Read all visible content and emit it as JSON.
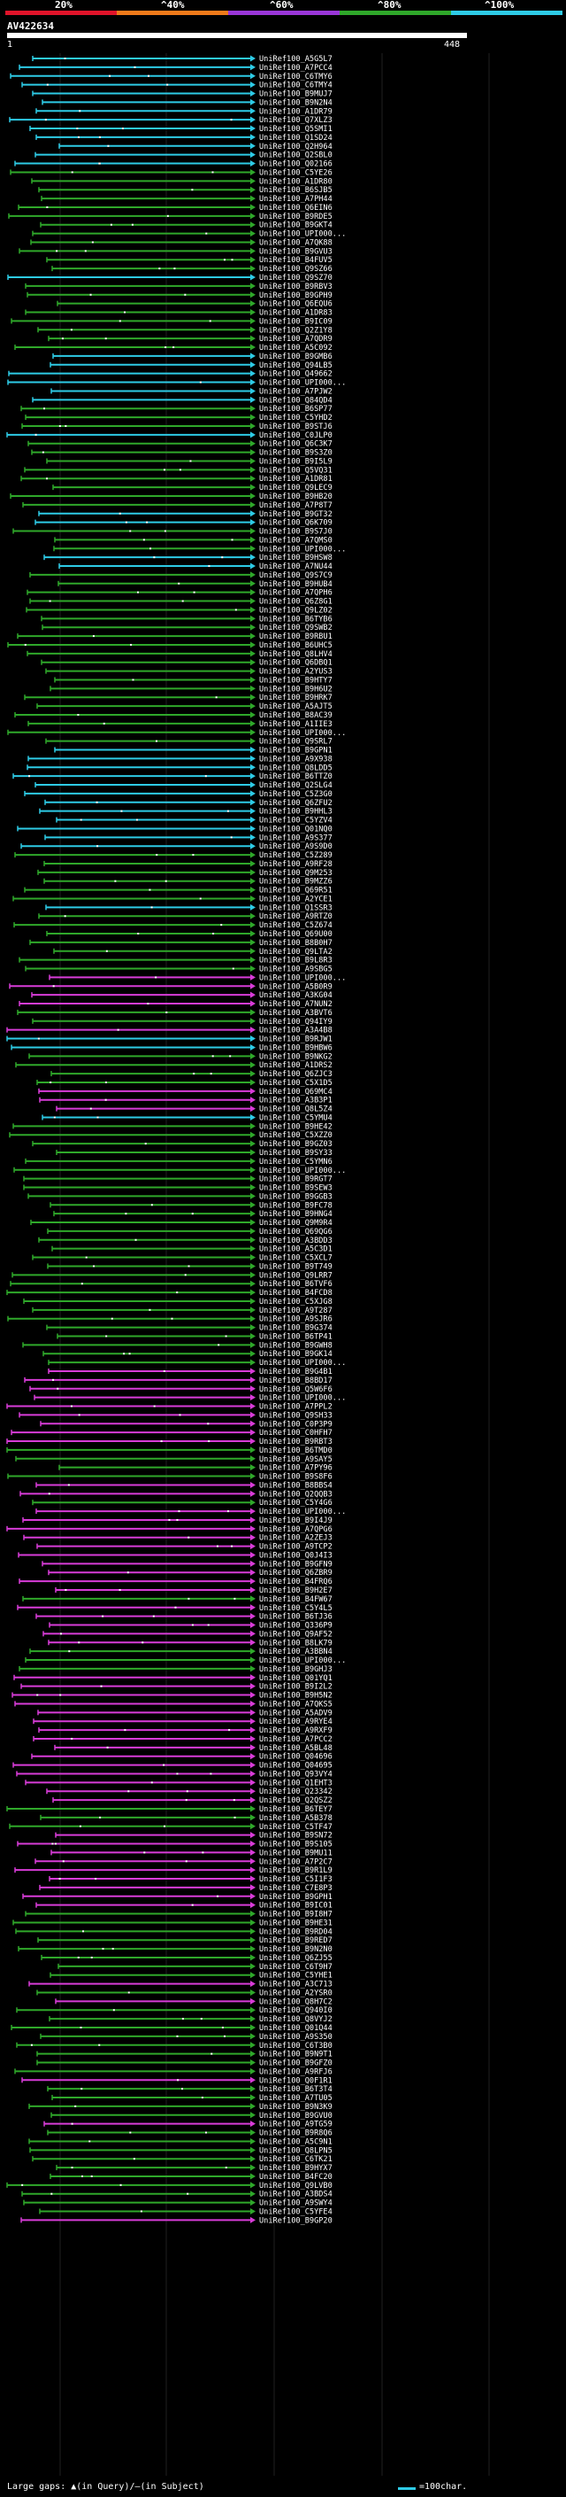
{
  "scale": {
    "labels": [
      "20%",
      "^40%",
      "^60%",
      "^80%",
      "^100%"
    ],
    "colors": [
      "#e0142a",
      "#f07a1a",
      "#9a36d8",
      "#2fa82a",
      "#2ecbe6"
    ]
  },
  "query": {
    "id": "AV422634",
    "start": "1",
    "end": "448"
  },
  "footer": {
    "gaps_text": "Large gaps: ▲(in Query)/—(in Subject)",
    "legend_text": "=100char."
  },
  "hits": [
    {
      "label": "UniRef100_A5G5L7",
      "color": "#2ecbe6"
    },
    {
      "label": "UniRef100_A7PCC4",
      "color": "#2ecbe6"
    },
    {
      "label": "UniRef100_C6TMY6",
      "color": "#2ecbe6"
    },
    {
      "label": "UniRef100_C6TMY4",
      "color": "#2ecbe6"
    },
    {
      "label": "UniRef100_B9MUJ7",
      "color": "#2ecbe6"
    },
    {
      "label": "UniRef100_B9N2N4",
      "color": "#2ecbe6"
    },
    {
      "label": "UniRef100_A1DR79",
      "color": "#2ecbe6"
    },
    {
      "label": "UniRef100_Q7XLZ3",
      "color": "#2ecbe6"
    },
    {
      "label": "UniRef100_Q5SMI1",
      "color": "#2ecbe6"
    },
    {
      "label": "UniRef100_Q1SD24",
      "color": "#2ecbe6"
    },
    {
      "label": "UniRef100_Q2H964",
      "color": "#2ecbe6"
    },
    {
      "label": "UniRef100_Q2SBL0",
      "color": "#2ecbe6"
    },
    {
      "label": "UniRef100_Q02166",
      "color": "#2ecbe6"
    },
    {
      "label": "UniRef100_C5YE26",
      "color": "#2fa82a"
    },
    {
      "label": "UniRef100_A1DR80",
      "color": "#2fa82a"
    },
    {
      "label": "UniRef100_B6SJB5",
      "color": "#2fa82a"
    },
    {
      "label": "UniRef100_A7PH44",
      "color": "#2fa82a"
    },
    {
      "label": "UniRef100_Q6EIN6",
      "color": "#2fa82a"
    },
    {
      "label": "UniRef100_B9RDE5",
      "color": "#2fa82a"
    },
    {
      "label": "UniRef100_B9GKT4",
      "color": "#2fa82a"
    },
    {
      "label": "UniRef100_UPI000...",
      "color": "#2fa82a"
    },
    {
      "label": "UniRef100_A7QK88",
      "color": "#2fa82a"
    },
    {
      "label": "UniRef100_B9GVU3",
      "color": "#2fa82a"
    },
    {
      "label": "UniRef100_B4FUV5",
      "color": "#2fa82a"
    },
    {
      "label": "UniRef100_Q9SZ66",
      "color": "#2fa82a"
    },
    {
      "label": "UniRef100_Q9SZ70",
      "color": "#2ecbe6"
    },
    {
      "label": "UniRef100_B9RBV3",
      "color": "#2fa82a"
    },
    {
      "label": "UniRef100_B9GPH9",
      "color": "#2fa82a"
    },
    {
      "label": "UniRef100_Q6EQU6",
      "color": "#2fa82a"
    },
    {
      "label": "UniRef100_A1DR83",
      "color": "#2fa82a"
    },
    {
      "label": "UniRef100_B9IC09",
      "color": "#2fa82a"
    },
    {
      "label": "UniRef100_Q2Z1Y8",
      "color": "#2fa82a"
    },
    {
      "label": "UniRef100_A7QDR9",
      "color": "#2fa82a"
    },
    {
      "label": "UniRef100_A5C092",
      "color": "#2fa82a"
    },
    {
      "label": "UniRef100_B9GMB6",
      "color": "#2ecbe6"
    },
    {
      "label": "UniRef100_Q94LB5",
      "color": "#2ecbe6"
    },
    {
      "label": "UniRef100_Q49662",
      "color": "#2ecbe6"
    },
    {
      "label": "UniRef100_UPI000...",
      "color": "#2ecbe6"
    },
    {
      "label": "UniRef100_A7PJW2",
      "color": "#2ecbe6"
    },
    {
      "label": "UniRef100_Q84QD4",
      "color": "#2ecbe6"
    },
    {
      "label": "UniRef100_B6SP77",
      "color": "#2fa82a"
    },
    {
      "label": "UniRef100_C5YHD2",
      "color": "#2fa82a"
    },
    {
      "label": "UniRef100_B9STJ6",
      "color": "#2fa82a"
    },
    {
      "label": "UniRef100_C0JLP0",
      "color": "#2ecbe6"
    },
    {
      "label": "UniRef100_Q6C3K7",
      "color": "#2fa82a"
    },
    {
      "label": "UniRef100_B9S3Z0",
      "color": "#2fa82a"
    },
    {
      "label": "UniRef100_B9I5L9",
      "color": "#2fa82a"
    },
    {
      "label": "UniRef100_Q5VQ31",
      "color": "#2fa82a"
    },
    {
      "label": "UniRef100_A1DR81",
      "color": "#2fa82a"
    },
    {
      "label": "UniRef100_Q9LEC9",
      "color": "#2fa82a"
    },
    {
      "label": "UniRef100_B9HB20",
      "color": "#2fa82a"
    },
    {
      "label": "UniRef100_A7P8T7",
      "color": "#2fa82a"
    },
    {
      "label": "UniRef100_B9GT32",
      "color": "#2ecbe6"
    },
    {
      "label": "UniRef100_Q6K709",
      "color": "#2ecbe6"
    },
    {
      "label": "UniRef100_B9S7J0",
      "color": "#2fa82a"
    },
    {
      "label": "UniRef100_A7QMS0",
      "color": "#2fa82a"
    },
    {
      "label": "UniRef100_UPI000...",
      "color": "#2fa82a"
    },
    {
      "label": "UniRef100_B9HSW8",
      "color": "#2ecbe6"
    },
    {
      "label": "UniRef100_A7NU44",
      "color": "#2ecbe6"
    },
    {
      "label": "UniRef100_Q9S7C9",
      "color": "#2fa82a"
    },
    {
      "label": "UniRef100_B9HUB4",
      "color": "#2fa82a"
    },
    {
      "label": "UniRef100_A7QPH6",
      "color": "#2fa82a"
    },
    {
      "label": "UniRef100_Q6Z8G1",
      "color": "#2fa82a"
    },
    {
      "label": "UniRef100_Q9LZ02",
      "color": "#2fa82a"
    },
    {
      "label": "UniRef100_B6TYB6",
      "color": "#2fa82a"
    },
    {
      "label": "UniRef100_Q9SWB2",
      "color": "#2fa82a"
    },
    {
      "label": "UniRef100_B9RBU1",
      "color": "#2fa82a"
    },
    {
      "label": "UniRef100_B6UHC5",
      "color": "#2fa82a"
    },
    {
      "label": "UniRef100_Q8LHV4",
      "color": "#2fa82a"
    },
    {
      "label": "UniRef100_Q6DBQ1",
      "color": "#2fa82a"
    },
    {
      "label": "UniRef100_A2YUS3",
      "color": "#2fa82a"
    },
    {
      "label": "UniRef100_B9HTY7",
      "color": "#2fa82a"
    },
    {
      "label": "UniRef100_B9H6U2",
      "color": "#2fa82a"
    },
    {
      "label": "UniRef100_B9HRK7",
      "color": "#2fa82a"
    },
    {
      "label": "UniRef100_A5AJT5",
      "color": "#2fa82a"
    },
    {
      "label": "UniRef100_B8AC39",
      "color": "#2fa82a"
    },
    {
      "label": "UniRef100_A1IIE3",
      "color": "#2fa82a"
    },
    {
      "label": "UniRef100_UPI000...",
      "color": "#2fa82a"
    },
    {
      "label": "UniRef100_Q9SRL7",
      "color": "#2fa82a"
    },
    {
      "label": "UniRef100_B9GPN1",
      "color": "#2ecbe6"
    },
    {
      "label": "UniRef100_A9X938",
      "color": "#2ecbe6"
    },
    {
      "label": "UniRef100_Q8LDD5",
      "color": "#2ecbe6"
    },
    {
      "label": "UniRef100_B6TTZ0",
      "color": "#2ecbe6"
    },
    {
      "label": "UniRef100_Q2SLG4",
      "color": "#2ecbe6"
    },
    {
      "label": "UniRef100_C5Z3G0",
      "color": "#2ecbe6"
    },
    {
      "label": "UniRef100_Q6ZFU2",
      "color": "#2ecbe6"
    },
    {
      "label": "UniRef100_B9HHL3",
      "color": "#2ecbe6"
    },
    {
      "label": "UniRef100_C5YZV4",
      "color": "#2ecbe6"
    },
    {
      "label": "UniRef100_Q01NQ0",
      "color": "#2ecbe6"
    },
    {
      "label": "UniRef100_A9S377",
      "color": "#2ecbe6"
    },
    {
      "label": "UniRef100_A9S9D0",
      "color": "#2ecbe6"
    },
    {
      "label": "UniRef100_C5Z289",
      "color": "#2fa82a"
    },
    {
      "label": "UniRef100_A9RF28",
      "color": "#2fa82a"
    },
    {
      "label": "UniRef100_Q9M253",
      "color": "#2fa82a"
    },
    {
      "label": "UniRef100_B9MZZ6",
      "color": "#2fa82a"
    },
    {
      "label": "UniRef100_Q69R51",
      "color": "#2fa82a"
    },
    {
      "label": "UniRef100_A2YCE1",
      "color": "#2fa82a"
    },
    {
      "label": "UniRef100_Q1SSR3",
      "color": "#2ecbe6"
    },
    {
      "label": "UniRef100_A9RTZ0",
      "color": "#2fa82a"
    },
    {
      "label": "UniRef100_C5Z674",
      "color": "#2fa82a"
    },
    {
      "label": "UniRef100_Q69U00",
      "color": "#2fa82a"
    },
    {
      "label": "UniRef100_B8B0H7",
      "color": "#2fa82a"
    },
    {
      "label": "UniRef100_Q9LTA2",
      "color": "#2fa82a"
    },
    {
      "label": "UniRef100_B9L8R3",
      "color": "#2fa82a"
    },
    {
      "label": "UniRef100_A9SBG5",
      "color": "#2fa82a"
    },
    {
      "label": "UniRef100_UPI000...",
      "color": "#d83cd8"
    },
    {
      "label": "UniRef100_A5B0R9",
      "color": "#d83cd8"
    },
    {
      "label": "UniRef100_A3KG04",
      "color": "#d83cd8"
    },
    {
      "label": "UniRef100_A7NUN2",
      "color": "#d83cd8"
    },
    {
      "label": "UniRef100_A3BVT6",
      "color": "#2fa82a"
    },
    {
      "label": "UniRef100_Q94IY9",
      "color": "#2fa82a"
    },
    {
      "label": "UniRef100_A3A4B8",
      "color": "#d83cd8"
    },
    {
      "label": "UniRef100_B9RJW1",
      "color": "#2ecbe6"
    },
    {
      "label": "UniRef100_B9HBW6",
      "color": "#2ecbe6"
    },
    {
      "label": "UniRef100_B9NKG2",
      "color": "#2fa82a"
    },
    {
      "label": "UniRef100_A1DRS2",
      "color": "#2fa82a"
    },
    {
      "label": "UniRef100_Q6ZJC3",
      "color": "#2fa82a"
    },
    {
      "label": "UniRef100_C5X1D5",
      "color": "#2fa82a"
    },
    {
      "label": "UniRef100_Q69MC4",
      "color": "#d83cd8"
    },
    {
      "label": "UniRef100_A3B3P1",
      "color": "#d83cd8"
    },
    {
      "label": "UniRef100_Q8L5Z4",
      "color": "#d83cd8"
    },
    {
      "label": "UniRef100_C5YMU4",
      "color": "#2ecbe6"
    },
    {
      "label": "UniRef100_B9HE42",
      "color": "#2fa82a"
    },
    {
      "label": "UniRef100_C5XZZ0",
      "color": "#2fa82a"
    },
    {
      "label": "UniRef100_B9GZ03",
      "color": "#2fa82a"
    },
    {
      "label": "UniRef100_B9SY33",
      "color": "#2fa82a"
    },
    {
      "label": "UniRef100_C5YMN6",
      "color": "#2fa82a"
    },
    {
      "label": "UniRef100_UPI000...",
      "color": "#2fa82a"
    },
    {
      "label": "UniRef100_B9RGT7",
      "color": "#2fa82a"
    },
    {
      "label": "UniRef100_B9SEW3",
      "color": "#2fa82a"
    },
    {
      "label": "UniRef100_B9GGB3",
      "color": "#2fa82a"
    },
    {
      "label": "UniRef100_B9FC78",
      "color": "#2fa82a"
    },
    {
      "label": "UniRef100_B9HNG4",
      "color": "#2fa82a"
    },
    {
      "label": "UniRef100_Q9M9R4",
      "color": "#2fa82a"
    },
    {
      "label": "UniRef100_Q69QG6",
      "color": "#2fa82a"
    },
    {
      "label": "UniRef100_A3BDD3",
      "color": "#2fa82a"
    },
    {
      "label": "UniRef100_A5C3D1",
      "color": "#2fa82a"
    },
    {
      "label": "UniRef100_C5XCL7",
      "color": "#2fa82a"
    },
    {
      "label": "UniRef100_B9T749",
      "color": "#2fa82a"
    },
    {
      "label": "UniRef100_Q9LRR7",
      "color": "#2fa82a"
    },
    {
      "label": "UniRef100_B6TVF6",
      "color": "#2fa82a"
    },
    {
      "label": "UniRef100_B4FCD8",
      "color": "#2fa82a"
    },
    {
      "label": "UniRef100_C5XJG8",
      "color": "#2fa82a"
    },
    {
      "label": "UniRef100_A9T287",
      "color": "#2fa82a"
    },
    {
      "label": "UniRef100_A9SJR6",
      "color": "#2fa82a"
    },
    {
      "label": "UniRef100_B9G374",
      "color": "#2fa82a"
    },
    {
      "label": "UniRef100_B6TP41",
      "color": "#2fa82a"
    },
    {
      "label": "UniRef100_B9GWH8",
      "color": "#2fa82a"
    },
    {
      "label": "UniRef100_B9GK14",
      "color": "#2fa82a"
    },
    {
      "label": "UniRef100_UPI000...",
      "color": "#2fa82a"
    },
    {
      "label": "UniRef100_B9G4B1",
      "color": "#d83cd8"
    },
    {
      "label": "UniRef100_B8BD17",
      "color": "#d83cd8"
    },
    {
      "label": "UniRef100_Q5W6F6",
      "color": "#d83cd8"
    },
    {
      "label": "UniRef100_UPI000...",
      "color": "#d83cd8"
    },
    {
      "label": "UniRef100_A7PPL2",
      "color": "#d83cd8"
    },
    {
      "label": "UniRef100_Q9SH33",
      "color": "#d83cd8"
    },
    {
      "label": "UniRef100_C0P3P9",
      "color": "#d83cd8"
    },
    {
      "label": "UniRef100_C0HFH7",
      "color": "#d83cd8"
    },
    {
      "label": "UniRef100_B9RBT3",
      "color": "#d83cd8"
    },
    {
      "label": "UniRef100_B6TMD0",
      "color": "#2fa82a"
    },
    {
      "label": "UniRef100_A9SAY5",
      "color": "#2fa82a"
    },
    {
      "label": "UniRef100_A7PY96",
      "color": "#2fa82a"
    },
    {
      "label": "UniRef100_B9S8F6",
      "color": "#2fa82a"
    },
    {
      "label": "UniRef100_B8BBS4",
      "color": "#d83cd8"
    },
    {
      "label": "UniRef100_Q2QQB3",
      "color": "#d83cd8"
    },
    {
      "label": "UniRef100_C5Y4G6",
      "color": "#2fa82a"
    },
    {
      "label": "UniRef100_UPI000...",
      "color": "#d83cd8"
    },
    {
      "label": "UniRef100_B9I4J9",
      "color": "#d83cd8"
    },
    {
      "label": "UniRef100_A7QPG6",
      "color": "#d83cd8"
    },
    {
      "label": "UniRef100_A2ZEJ3",
      "color": "#d83cd8"
    },
    {
      "label": "UniRef100_A9TCP2",
      "color": "#d83cd8"
    },
    {
      "label": "UniRef100_Q0J4I3",
      "color": "#d83cd8"
    },
    {
      "label": "UniRef100_B9GFN9",
      "color": "#d83cd8"
    },
    {
      "label": "UniRef100_Q6ZBR9",
      "color": "#d83cd8"
    },
    {
      "label": "UniRef100_B4FRQ6",
      "color": "#d83cd8"
    },
    {
      "label": "UniRef100_B9H2E7",
      "color": "#d83cd8"
    },
    {
      "label": "UniRef100_B4FW67",
      "color": "#2fa82a"
    },
    {
      "label": "UniRef100_C5Y4L5",
      "color": "#d83cd8"
    },
    {
      "label": "UniRef100_B6TJ36",
      "color": "#d83cd8"
    },
    {
      "label": "UniRef100_Q336P9",
      "color": "#d83cd8"
    },
    {
      "label": "UniRef100_Q9AF52",
      "color": "#d83cd8"
    },
    {
      "label": "UniRef100_B8LK79",
      "color": "#d83cd8"
    },
    {
      "label": "UniRef100_A3BBN4",
      "color": "#2fa82a"
    },
    {
      "label": "UniRef100_UPI000...",
      "color": "#2fa82a"
    },
    {
      "label": "UniRef100_B9GHJ3",
      "color": "#2fa82a"
    },
    {
      "label": "UniRef100_Q01YQ1",
      "color": "#d83cd8"
    },
    {
      "label": "UniRef100_B9I2L2",
      "color": "#d83cd8"
    },
    {
      "label": "UniRef100_B9H5N2",
      "color": "#d83cd8"
    },
    {
      "label": "UniRef100_A7QKS5",
      "color": "#d83cd8"
    },
    {
      "label": "UniRef100_A5ADV9",
      "color": "#d83cd8"
    },
    {
      "label": "UniRef100_A9RYE4",
      "color": "#d83cd8"
    },
    {
      "label": "UniRef100_A9RXF9",
      "color": "#d83cd8"
    },
    {
      "label": "UniRef100_A7PCC2",
      "color": "#d83cd8"
    },
    {
      "label": "UniRef100_A5BL48",
      "color": "#d83cd8"
    },
    {
      "label": "UniRef100_Q04696",
      "color": "#d83cd8"
    },
    {
      "label": "UniRef100_Q04695",
      "color": "#d83cd8"
    },
    {
      "label": "UniRef100_Q93VY4",
      "color": "#d83cd8"
    },
    {
      "label": "UniRef100_Q1EHT3",
      "color": "#d83cd8"
    },
    {
      "label": "UniRef100_Q23342",
      "color": "#d83cd8"
    },
    {
      "label": "UniRef100_Q2QSZ2",
      "color": "#d83cd8"
    },
    {
      "label": "UniRef100_B6TEY7",
      "color": "#2fa82a"
    },
    {
      "label": "UniRef100_A5B378",
      "color": "#2fa82a"
    },
    {
      "label": "UniRef100_C5TF47",
      "color": "#2fa82a"
    },
    {
      "label": "UniRef100_B9SN72",
      "color": "#d83cd8"
    },
    {
      "label": "UniRef100_B9S105",
      "color": "#d83cd8"
    },
    {
      "label": "UniRef100_B9MU11",
      "color": "#d83cd8"
    },
    {
      "label": "UniRef100_A7P2C7",
      "color": "#d83cd8"
    },
    {
      "label": "UniRef100_B9R1L9",
      "color": "#d83cd8"
    },
    {
      "label": "UniRef100_C5I1F3",
      "color": "#d83cd8"
    },
    {
      "label": "UniRef100_C7E8P3",
      "color": "#d83cd8"
    },
    {
      "label": "UniRef100_B9GPH1",
      "color": "#d83cd8"
    },
    {
      "label": "UniRef100_B9IC01",
      "color": "#d83cd8"
    },
    {
      "label": "UniRef100_B9I8H7",
      "color": "#2fa82a"
    },
    {
      "label": "UniRef100_B9HE31",
      "color": "#2fa82a"
    },
    {
      "label": "UniRef100_B9RD04",
      "color": "#2fa82a"
    },
    {
      "label": "UniRef100_B9RED7",
      "color": "#2fa82a"
    },
    {
      "label": "UniRef100_B9N2N0",
      "color": "#2fa82a"
    },
    {
      "label": "UniRef100_Q6ZJ55",
      "color": "#2fa82a"
    },
    {
      "label": "UniRef100_C6T9H7",
      "color": "#2fa82a"
    },
    {
      "label": "UniRef100_C5YHE1",
      "color": "#2fa82a"
    },
    {
      "label": "UniRef100_A3C713",
      "color": "#d83cd8"
    },
    {
      "label": "UniRef100_A2YSR0",
      "color": "#2fa82a"
    },
    {
      "label": "UniRef100_Q8H7C2",
      "color": "#d83cd8"
    },
    {
      "label": "UniRef100_Q940I0",
      "color": "#2fa82a"
    },
    {
      "label": "UniRef100_Q8VYJ2",
      "color": "#2fa82a"
    },
    {
      "label": "UniRef100_Q01Q44",
      "color": "#2fa82a"
    },
    {
      "label": "UniRef100_A9S350",
      "color": "#2fa82a"
    },
    {
      "label": "UniRef100_C6T3B0",
      "color": "#2fa82a"
    },
    {
      "label": "UniRef100_B9N9T1",
      "color": "#2fa82a"
    },
    {
      "label": "UniRef100_B9GFZ0",
      "color": "#2fa82a"
    },
    {
      "label": "UniRef100_A9RFJ6",
      "color": "#2fa82a"
    },
    {
      "label": "UniRef100_Q0F1R1",
      "color": "#d83cd8"
    },
    {
      "label": "UniRef100_B6T3T4",
      "color": "#2fa82a"
    },
    {
      "label": "UniRef100_A7TU05",
      "color": "#2fa82a"
    },
    {
      "label": "UniRef100_B9N3K9",
      "color": "#2fa82a"
    },
    {
      "label": "UniRef100_B9GVU0",
      "color": "#2fa82a"
    },
    {
      "label": "UniRef100_A9TG59",
      "color": "#d83cd8"
    },
    {
      "label": "UniRef100_B9R8Q6",
      "color": "#2fa82a"
    },
    {
      "label": "UniRef100_A5C9N1",
      "color": "#2fa82a"
    },
    {
      "label": "UniRef100_Q8LPN5",
      "color": "#2fa82a"
    },
    {
      "label": "UniRef100_C6TK21",
      "color": "#2fa82a"
    },
    {
      "label": "UniRef100_B9HYX7",
      "color": "#2fa82a"
    },
    {
      "label": "UniRef100_B4FC20",
      "color": "#2fa82a"
    },
    {
      "label": "UniRef100_Q9LVB0",
      "color": "#2fa82a"
    },
    {
      "label": "UniRef100_A3BDS4",
      "color": "#2fa82a"
    },
    {
      "label": "UniRef100_A9SWY4",
      "color": "#2fa82a"
    },
    {
      "label": "UniRef100_C5YFE4",
      "color": "#2fa82a"
    },
    {
      "label": "UniRef100_B9GP20",
      "color": "#d83cd8"
    }
  ]
}
